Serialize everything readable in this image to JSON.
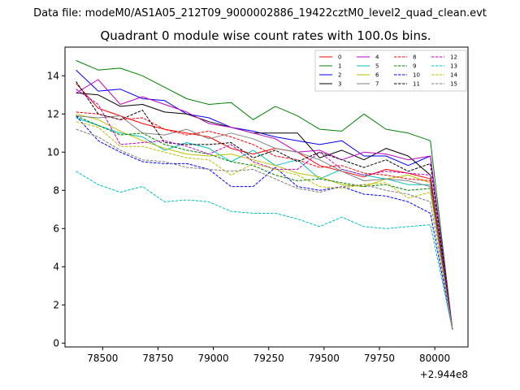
{
  "chart_data": {
    "type": "line",
    "suptitle": "Data file: modeM0/AS1A05_212T09_9000002886_19422cztM0_level2_quad_clean.evt",
    "title": "Quadrant 0 module wise count rates with 100.0s bins.",
    "xlabel": "",
    "ylabel": "",
    "x_offset_label": "+2.944e8",
    "xlim": [
      78330,
      80150
    ],
    "ylim": [
      -0.2,
      15.5
    ],
    "x_ticks": [
      78500,
      78750,
      79000,
      79250,
      79500,
      79750,
      80000
    ],
    "x_tick_labels": [
      "78500",
      "78750",
      "79000",
      "79250",
      "79500",
      "79750",
      "80000"
    ],
    "y_ticks": [
      0,
      2,
      4,
      6,
      8,
      10,
      12,
      14
    ],
    "y_tick_labels": [
      "0",
      "2",
      "4",
      "6",
      "8",
      "10",
      "12",
      "14"
    ],
    "grid": false,
    "legend_position": "top-right",
    "x": [
      78380,
      78480,
      78580,
      78680,
      78780,
      78880,
      78980,
      79080,
      79180,
      79280,
      79380,
      79480,
      79580,
      79680,
      79780,
      79880,
      79980,
      80080
    ],
    "series": [
      {
        "name": "0",
        "color": "#ff0000",
        "dash": "solid",
        "values": [
          13.6,
          12.3,
          11.9,
          11.5,
          11.2,
          11.0,
          10.8,
          10.2,
          9.9,
          10.2,
          10.0,
          9.3,
          9.0,
          8.7,
          9.1,
          8.9,
          8.6,
          0.7
        ]
      },
      {
        "name": "1",
        "color": "#008000",
        "dash": "solid",
        "values": [
          14.8,
          14.3,
          14.4,
          14.0,
          13.4,
          12.8,
          12.5,
          12.6,
          11.7,
          12.4,
          11.9,
          11.2,
          11.1,
          12.0,
          11.2,
          11.0,
          10.6,
          0.7
        ]
      },
      {
        "name": "2",
        "color": "#0000ff",
        "dash": "solid",
        "values": [
          14.3,
          13.2,
          13.3,
          12.8,
          12.7,
          12.0,
          11.8,
          11.3,
          11.1,
          10.8,
          10.6,
          10.4,
          10.6,
          9.8,
          9.8,
          9.3,
          9.8,
          0.7
        ]
      },
      {
        "name": "3",
        "color": "#000000",
        "dash": "solid",
        "values": [
          13.1,
          13.0,
          12.4,
          12.5,
          12.1,
          12.0,
          11.6,
          11.3,
          11.0,
          11.0,
          11.0,
          9.7,
          10.1,
          9.6,
          10.2,
          9.8,
          8.8,
          0.7
        ]
      },
      {
        "name": "4",
        "color": "#bf00bf",
        "dash": "solid",
        "values": [
          13.1,
          13.8,
          12.5,
          12.9,
          12.5,
          12.1,
          11.5,
          11.3,
          11.0,
          10.7,
          10.0,
          10.1,
          9.6,
          10.0,
          9.9,
          9.6,
          9.8,
          0.7
        ]
      },
      {
        "name": "5",
        "color": "#00bfbf",
        "dash": "solid",
        "values": [
          11.8,
          11.4,
          11.0,
          10.8,
          10.1,
          10.5,
          10.2,
          9.5,
          10.1,
          9.3,
          9.6,
          8.6,
          9.1,
          8.8,
          8.6,
          8.3,
          8.3,
          0.7
        ]
      },
      {
        "name": "6",
        "color": "#bfbf00",
        "dash": "solid",
        "values": [
          12.0,
          11.7,
          11.1,
          10.6,
          10.2,
          9.9,
          9.8,
          9.9,
          9.6,
          9.3,
          8.9,
          8.7,
          8.3,
          8.2,
          8.6,
          8.8,
          8.4,
          0.7
        ]
      },
      {
        "name": "7",
        "color": "#808080",
        "dash": "solid",
        "values": [
          11.9,
          11.8,
          11.9,
          11.0,
          10.9,
          11.2,
          10.7,
          11.0,
          10.7,
          10.2,
          10.0,
          9.6,
          9.0,
          8.5,
          8.6,
          8.5,
          8.2,
          0.7
        ]
      },
      {
        "name": "8",
        "color": "#ff0000",
        "dash": "dashed",
        "values": [
          12.1,
          12.0,
          11.7,
          11.8,
          11.2,
          10.9,
          11.1,
          10.8,
          10.4,
          9.8,
          9.6,
          9.2,
          9.3,
          8.9,
          8.8,
          8.6,
          8.5,
          0.7
        ]
      },
      {
        "name": "9",
        "color": "#008000",
        "dash": "dashed",
        "values": [
          11.9,
          11.4,
          10.9,
          11.0,
          10.4,
          10.1,
          9.9,
          9.5,
          9.3,
          8.8,
          8.5,
          8.6,
          8.4,
          8.2,
          8.3,
          8.0,
          8.1,
          0.7
        ]
      },
      {
        "name": "10",
        "color": "#0000ff",
        "dash": "dashed",
        "values": [
          11.9,
          10.6,
          10.0,
          9.5,
          9.4,
          9.4,
          9.1,
          8.2,
          8.2,
          9.2,
          8.2,
          8.0,
          8.2,
          7.8,
          7.7,
          7.4,
          6.8,
          0.7
        ]
      },
      {
        "name": "11",
        "color": "#000000",
        "dash": "dashed",
        "values": [
          13.7,
          12.0,
          11.7,
          12.2,
          10.5,
          10.4,
          10.4,
          10.5,
          9.7,
          10.1,
          9.5,
          10.0,
          9.6,
          9.2,
          9.6,
          9.0,
          9.4,
          0.7
        ]
      },
      {
        "name": "12",
        "color": "#bf00bf",
        "dash": "dashed",
        "values": [
          13.3,
          12.5,
          10.4,
          10.5,
          10.6,
          10.3,
          9.9,
          10.4,
          9.5,
          9.1,
          9.1,
          10.0,
          9.1,
          8.8,
          9.0,
          8.9,
          8.8,
          0.7
        ]
      },
      {
        "name": "13",
        "color": "#00bfbf",
        "dash": "dashed",
        "values": [
          9.0,
          8.3,
          7.9,
          8.2,
          7.4,
          7.5,
          7.4,
          6.9,
          6.8,
          6.8,
          6.5,
          6.1,
          6.6,
          6.1,
          6.0,
          6.1,
          6.2,
          0.7
        ]
      },
      {
        "name": "14",
        "color": "#bfbf00",
        "dash": "dashed",
        "values": [
          11.6,
          11.3,
          10.3,
          10.3,
          10.0,
          9.7,
          9.6,
          8.8,
          9.4,
          9.1,
          8.8,
          8.2,
          8.1,
          8.3,
          8.4,
          7.6,
          7.9,
          0.7
        ]
      },
      {
        "name": "15",
        "color": "#808080",
        "dash": "dashed",
        "values": [
          11.2,
          10.8,
          10.1,
          9.6,
          9.5,
          9.2,
          9.1,
          9.0,
          9.1,
          8.6,
          8.1,
          7.9,
          8.2,
          8.3,
          8.0,
          7.8,
          7.4,
          0.7
        ]
      }
    ]
  }
}
